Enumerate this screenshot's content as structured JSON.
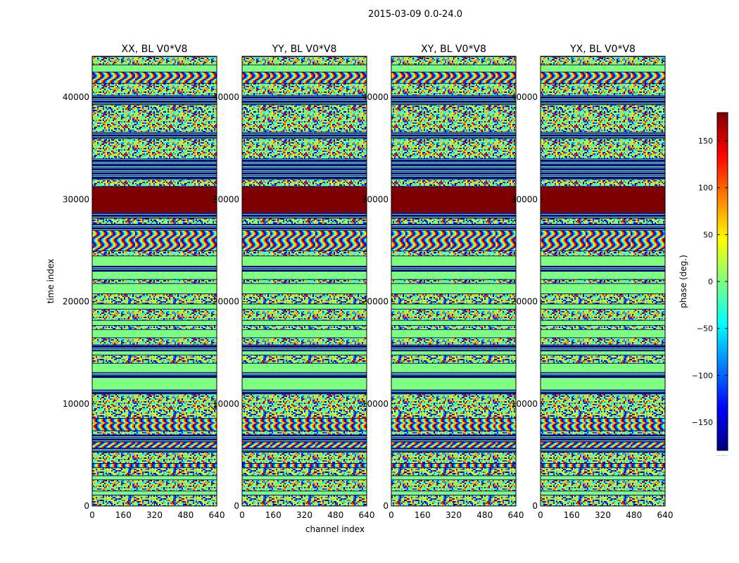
{
  "figure_title": "2015-03-09 0.0-24.0",
  "colors": {
    "jet": [
      "#00007f",
      "#0000ff",
      "#007fff",
      "#00ffff",
      "#7fff7f",
      "#ffff00",
      "#ff7f00",
      "#ff0000",
      "#7f0000"
    ],
    "flag_fill": "#7fff7f",
    "saturated": "#7f0000",
    "line_dark": "#00007f"
  },
  "chart_data": [
    {
      "type": "heatmap",
      "title": "XX, BL V0*V8",
      "xlabel": "channel index",
      "ylabel": "time index",
      "xlim": [
        0,
        640
      ],
      "ylim": [
        0,
        44000
      ],
      "xticks": [
        0,
        160,
        320,
        480,
        640
      ],
      "yticks": [
        0,
        10000,
        20000,
        30000,
        40000
      ],
      "colormap": "jet",
      "value_range": [
        -180,
        180
      ]
    },
    {
      "type": "heatmap",
      "title": "YY, BL V0*V8",
      "xlabel": "channel index",
      "ylabel": "",
      "xlim": [
        0,
        640
      ],
      "ylim": [
        0,
        44000
      ],
      "xticks": [
        0,
        160,
        320,
        480,
        640
      ],
      "yticks": [
        0,
        10000,
        20000,
        30000,
        40000
      ],
      "colormap": "jet",
      "value_range": [
        -180,
        180
      ]
    },
    {
      "type": "heatmap",
      "title": "XY, BL V0*V8",
      "xlabel": "",
      "ylabel": "",
      "xlim": [
        0,
        640
      ],
      "ylim": [
        0,
        44000
      ],
      "xticks": [
        0,
        160,
        320,
        480,
        640
      ],
      "yticks": [
        0,
        10000,
        20000,
        30000,
        40000
      ],
      "colormap": "jet",
      "value_range": [
        -180,
        180
      ]
    },
    {
      "type": "heatmap",
      "title": "YX, BL V0*V8",
      "xlabel": "",
      "ylabel": "",
      "xlim": [
        0,
        640
      ],
      "ylim": [
        0,
        44000
      ],
      "xticks": [
        0,
        160,
        320,
        480,
        640
      ],
      "yticks": [
        0,
        10000,
        20000,
        30000,
        40000
      ],
      "colormap": "jet",
      "value_range": [
        -180,
        180
      ]
    }
  ],
  "time_bands": [
    {
      "from": 0,
      "to": 1100,
      "kind": "noisy"
    },
    {
      "from": 1100,
      "to": 1500,
      "kind": "flagged"
    },
    {
      "from": 1500,
      "to": 2600,
      "kind": "noisy"
    },
    {
      "from": 2600,
      "to": 3000,
      "kind": "flagged"
    },
    {
      "from": 3000,
      "to": 3800,
      "kind": "noisy"
    },
    {
      "from": 3800,
      "to": 4200,
      "kind": "fringe"
    },
    {
      "from": 4200,
      "to": 5300,
      "kind": "noisy"
    },
    {
      "from": 5300,
      "to": 5700,
      "kind": "dark"
    },
    {
      "from": 5700,
      "to": 6300,
      "kind": "fringe"
    },
    {
      "from": 6300,
      "to": 7000,
      "kind": "dark"
    },
    {
      "from": 7000,
      "to": 7400,
      "kind": "noisy"
    },
    {
      "from": 7400,
      "to": 8600,
      "kind": "fringe"
    },
    {
      "from": 8600,
      "to": 11000,
      "kind": "noisy"
    },
    {
      "from": 11000,
      "to": 11400,
      "kind": "dark"
    },
    {
      "from": 11400,
      "to": 12600,
      "kind": "flagged"
    },
    {
      "from": 12600,
      "to": 13100,
      "kind": "dark"
    },
    {
      "from": 13100,
      "to": 14000,
      "kind": "flagged"
    },
    {
      "from": 14000,
      "to": 14800,
      "kind": "noisy"
    },
    {
      "from": 14800,
      "to": 15200,
      "kind": "flagged"
    },
    {
      "from": 15200,
      "to": 15800,
      "kind": "dark"
    },
    {
      "from": 15800,
      "to": 16500,
      "kind": "noisy"
    },
    {
      "from": 16500,
      "to": 17300,
      "kind": "flagged"
    },
    {
      "from": 17300,
      "to": 17700,
      "kind": "noisy"
    },
    {
      "from": 17700,
      "to": 18200,
      "kind": "flagged"
    },
    {
      "from": 18200,
      "to": 19300,
      "kind": "noisy"
    },
    {
      "from": 19300,
      "to": 19800,
      "kind": "flagged"
    },
    {
      "from": 19800,
      "to": 20800,
      "kind": "noisy"
    },
    {
      "from": 20800,
      "to": 21800,
      "kind": "flagged"
    },
    {
      "from": 21800,
      "to": 22200,
      "kind": "noisy"
    },
    {
      "from": 22200,
      "to": 23000,
      "kind": "flagged"
    },
    {
      "from": 23000,
      "to": 23500,
      "kind": "dark"
    },
    {
      "from": 23500,
      "to": 24500,
      "kind": "flagged"
    },
    {
      "from": 24500,
      "to": 25000,
      "kind": "noisy"
    },
    {
      "from": 25000,
      "to": 27000,
      "kind": "fringe"
    },
    {
      "from": 27000,
      "to": 27600,
      "kind": "dark"
    },
    {
      "from": 27600,
      "to": 28200,
      "kind": "noisy"
    },
    {
      "from": 28200,
      "to": 28700,
      "kind": "dark"
    },
    {
      "from": 28700,
      "to": 31300,
      "kind": "saturated"
    },
    {
      "from": 31300,
      "to": 32000,
      "kind": "noisy"
    },
    {
      "from": 32000,
      "to": 34000,
      "kind": "dark"
    },
    {
      "from": 34000,
      "to": 36000,
      "kind": "noisy"
    },
    {
      "from": 36000,
      "to": 36600,
      "kind": "dark"
    },
    {
      "from": 36600,
      "to": 39300,
      "kind": "noisy"
    },
    {
      "from": 39300,
      "to": 40200,
      "kind": "dark"
    },
    {
      "from": 40200,
      "to": 41400,
      "kind": "noisy"
    },
    {
      "from": 41400,
      "to": 42500,
      "kind": "fringe"
    },
    {
      "from": 42500,
      "to": 43200,
      "kind": "flagged"
    },
    {
      "from": 43200,
      "to": 44000,
      "kind": "noisy"
    }
  ],
  "colorbar": {
    "label": "phase (deg.)",
    "range": [
      -180,
      180
    ],
    "ticks": [
      -150,
      -100,
      -50,
      0,
      50,
      100,
      150
    ],
    "tick_labels": [
      "−150",
      "−100",
      "−50",
      "0",
      "50",
      "100",
      "150"
    ],
    "footnote": "......"
  }
}
